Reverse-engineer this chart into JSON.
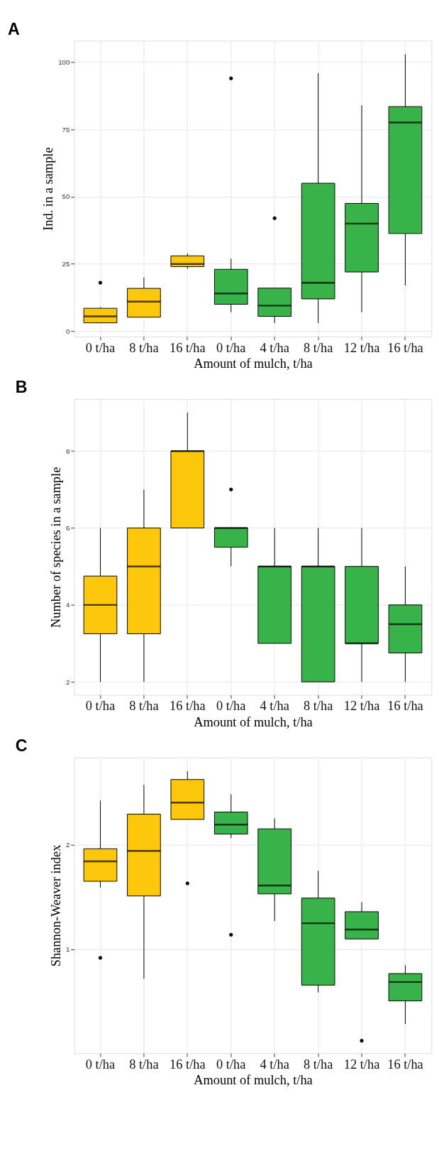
{
  "chart_data": [
    {
      "type": "box",
      "title": "A",
      "xlabel": "Amount of mulch, t/ha",
      "ylabel": "Ind. in a sample",
      "categories": [
        "0 t/ha",
        "8 t/ha",
        "16 t/ha",
        "0 t/ha",
        "4 t/ha",
        "8 t/ha",
        "12 t/ha",
        "16 t/ha"
      ],
      "colors": [
        "#fdc70c",
        "#fdc70c",
        "#fdc70c",
        "#37b34a",
        "#37b34a",
        "#37b34a",
        "#37b34a",
        "#37b34a"
      ],
      "ylim": [
        -2,
        108
      ],
      "yticks": [
        0,
        25,
        50,
        75,
        100
      ],
      "grid": true,
      "boxes": [
        {
          "low": 3.1,
          "q1": 3.1,
          "median": 5.5,
          "q3": 8.5,
          "high": 8.9,
          "outliers": [
            18
          ]
        },
        {
          "low": 5.2,
          "q1": 5.2,
          "median": 11,
          "q3": 15.9,
          "high": 20
        },
        {
          "low": 23.2,
          "q1": 24,
          "median": 25,
          "q3": 28,
          "high": 28.9
        },
        {
          "low": 7,
          "q1": 10,
          "median": 14,
          "q3": 23,
          "high": 27,
          "outliers": [
            94
          ]
        },
        {
          "low": 3,
          "q1": 5.5,
          "median": 9.5,
          "q3": 16,
          "high": 16,
          "outliers": [
            42
          ]
        },
        {
          "low": 3,
          "q1": 12,
          "median": 18,
          "q3": 55,
          "high": 96
        },
        {
          "low": 7,
          "q1": 22,
          "median": 40,
          "q3": 47.5,
          "high": 84
        },
        {
          "low": 17,
          "q1": 36.3,
          "median": 77.6,
          "q3": 83.5,
          "high": 103
        }
      ]
    },
    {
      "type": "box",
      "title": "B",
      "xlabel": "Amount of mulch, t/ha",
      "ylabel": "Number of species in a sample",
      "categories": [
        "0 t/ha",
        "8 t/ha",
        "16 t/ha",
        "0 t/ha",
        "4 t/ha",
        "8 t/ha",
        "12 t/ha",
        "16 t/ha"
      ],
      "colors": [
        "#fdc70c",
        "#fdc70c",
        "#fdc70c",
        "#37b34a",
        "#37b34a",
        "#37b34a",
        "#37b34a",
        "#37b34a"
      ],
      "ylim": [
        1.66,
        9.35
      ],
      "yticks": [
        2,
        4,
        6,
        8
      ],
      "grid": true,
      "boxes": [
        {
          "low": 2,
          "q1": 3.25,
          "median": 4,
          "q3": 4.75,
          "high": 6
        },
        {
          "low": 2,
          "q1": 3.25,
          "median": 5,
          "q3": 6,
          "high": 7
        },
        {
          "low": 6,
          "q1": 6,
          "median": 8,
          "q3": 8,
          "high": 9
        },
        {
          "low": 5,
          "q1": 5.5,
          "median": 6,
          "q3": 6,
          "high": 6,
          "outliers": [
            7
          ]
        },
        {
          "low": 3,
          "q1": 3,
          "median": 5,
          "q3": 5,
          "high": 6
        },
        {
          "low": 2,
          "q1": 2,
          "median": 5,
          "q3": 5,
          "high": 6
        },
        {
          "low": 2,
          "q1": 3,
          "median": 3,
          "q3": 5,
          "high": 6
        },
        {
          "low": 2,
          "q1": 2.75,
          "median": 3.5,
          "q3": 4,
          "high": 5
        }
      ]
    },
    {
      "type": "box",
      "title": "C",
      "xlabel": "Amount of mulch, t/ha",
      "ylabel": "Shannon-Weaver index",
      "categories": [
        "0 t/ha",
        "8 t/ha",
        "16 t/ha",
        "0 t/ha",
        "4 t/ha",
        "8 t/ha",
        "12 t/ha",
        "16 t/ha"
      ],
      "colors": [
        "#fdc70c",
        "#fdc70c",
        "#fdc70c",
        "#37b34a",
        "#37b34a",
        "#37b34a",
        "#37b34a",
        "#37b34a"
      ],
      "ylim": [
        0.01,
        2.83
      ],
      "yticks": [
        1,
        2
      ],
      "grid": true,
      "boxes": [
        {
          "low": 1.59,
          "q1": 1.65,
          "median": 1.84,
          "q3": 1.96,
          "high": 2.42,
          "outliers": [
            0.92
          ]
        },
        {
          "low": 0.72,
          "q1": 1.51,
          "median": 1.94,
          "q3": 2.29,
          "high": 2.57
        },
        {
          "low": 2.24,
          "q1": 2.24,
          "median": 2.4,
          "q3": 2.62,
          "high": 2.7,
          "outliers": [
            1.63
          ]
        },
        {
          "low": 2.06,
          "q1": 2.1,
          "median": 2.19,
          "q3": 2.31,
          "high": 2.48,
          "outliers": [
            1.14
          ]
        },
        {
          "low": 1.27,
          "q1": 1.53,
          "median": 1.61,
          "q3": 2.15,
          "high": 2.25
        },
        {
          "low": 0.59,
          "q1": 0.66,
          "median": 1.25,
          "q3": 1.49,
          "high": 1.75
        },
        {
          "low": 1.1,
          "q1": 1.1,
          "median": 1.19,
          "q3": 1.36,
          "high": 1.45,
          "outliers": [
            0.13
          ]
        },
        {
          "low": 0.29,
          "q1": 0.51,
          "median": 0.69,
          "q3": 0.77,
          "high": 0.85
        }
      ]
    }
  ]
}
